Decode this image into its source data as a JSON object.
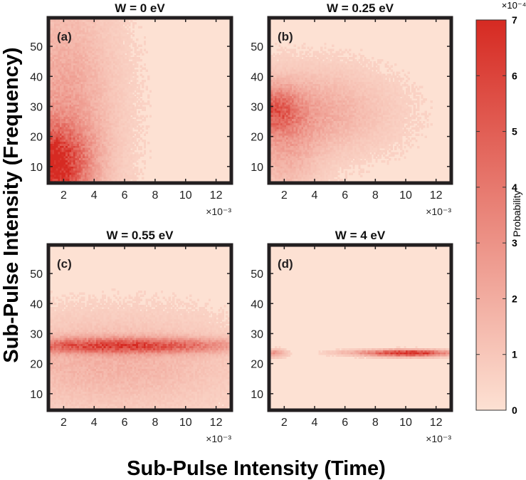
{
  "chart_data": {
    "type": "heatmap",
    "xlabel": "Sub-Pulse  Intensity  (Time)",
    "ylabel": "Sub-Pulse  Intensity  (Frequency)",
    "x_exponent_label": "×10⁻³",
    "xlim": [
      1,
      13
    ],
    "ylim": [
      4.5,
      59.5
    ],
    "xticks": [
      2,
      4,
      6,
      8,
      10,
      12
    ],
    "yticks": [
      10,
      20,
      30,
      40,
      50
    ],
    "colorbar": {
      "label": "Probability",
      "exponent_label": "×10⁻⁴",
      "range": [
        0,
        7
      ],
      "ticks": [
        0,
        1,
        2,
        3,
        4,
        5,
        6,
        7
      ],
      "colors": [
        "#fde1d3",
        "#d62a22"
      ]
    },
    "panels": [
      {
        "id": "a",
        "tag": "(a)",
        "title": "W = 0 eV",
        "background": 0.4,
        "blobs": [
          {
            "x": 1.0,
            "y": 10,
            "sx": 1.7,
            "sy": 9,
            "amp": 6.2
          },
          {
            "x": 2.0,
            "y": 28,
            "sx": 2.2,
            "sy": 26,
            "amp": 2.0
          }
        ]
      },
      {
        "id": "b",
        "tag": "(b)",
        "title": "W = 0.25 eV",
        "background": 0.4,
        "blobs": [
          {
            "x": 1.3,
            "y": 29,
            "sx": 1.1,
            "sy": 5,
            "amp": 3.2
          },
          {
            "x": 3.8,
            "y": 28,
            "sx": 3.2,
            "sy": 9,
            "amp": 1.7
          },
          {
            "x": 2.0,
            "y": 16,
            "sx": 1.5,
            "sy": 11,
            "amp": 1.4
          }
        ]
      },
      {
        "id": "c",
        "tag": "(c)",
        "title": "W = 0.55 eV",
        "background": 0.4,
        "blobs": [
          {
            "x": 5.8,
            "y": 26,
            "sx": 5.2,
            "sy": 1.7,
            "amp": 4.8
          },
          {
            "x": 5.0,
            "y": 20,
            "sx": 5.5,
            "sy": 10,
            "amp": 1.4
          }
        ]
      },
      {
        "id": "d",
        "tag": "(d)",
        "title": "W = 4 eV",
        "background": 0.3,
        "blobs": [
          {
            "x": 10.2,
            "y": 23.5,
            "sx": 1.9,
            "sy": 0.75,
            "amp": 7.0
          },
          {
            "x": 1.4,
            "y": 23.5,
            "sx": 0.5,
            "sy": 0.9,
            "amp": 2.6
          },
          {
            "x": 6.5,
            "y": 23.7,
            "sx": 1.3,
            "sy": 0.6,
            "amp": 0.9
          }
        ]
      }
    ]
  }
}
